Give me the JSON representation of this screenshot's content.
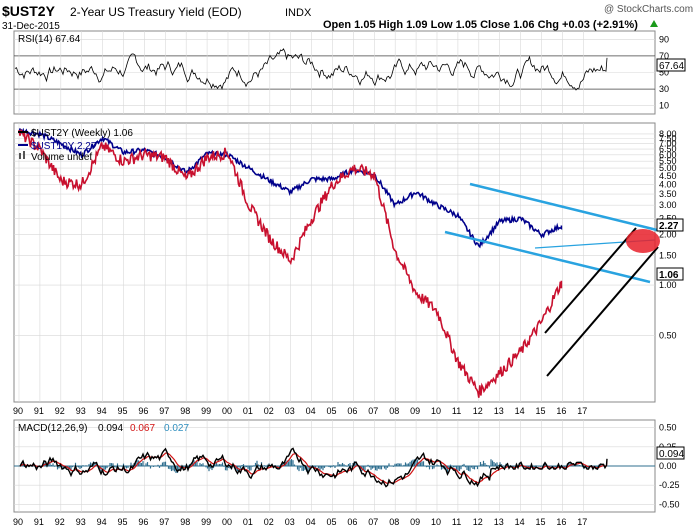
{
  "header": {
    "symbol": "$UST2Y",
    "name": "2-Year US Treasury Yield (EOD)",
    "exchange": "INDX",
    "date": "31-Dec-2015",
    "copyright": "@ StockCharts.com",
    "quote": "Open 1.05  High 1.09  Low 1.05  Close 1.06  Chg +0.03 (+2.91%)",
    "chg_arrow": "up-triangle-icon"
  },
  "colors": {
    "ust2y_black": "#000000",
    "ust2y_red": "#c8102e",
    "ust10y": "#00008b",
    "channel": "#29a3e0",
    "highlight": "#e8202a",
    "macd_hist": "#2f6f8f",
    "signal": "#d21414",
    "grid": "#d8d8d8"
  },
  "chart_data": [
    {
      "type": "line",
      "panel": "RSI",
      "title": "RSI(14) 67.64",
      "series": [
        {
          "name": "RSI(14)",
          "last": 67.64
        }
      ],
      "y_ticks": [
        90,
        70,
        50,
        30,
        10
      ],
      "reference_lines": [
        70,
        30
      ],
      "last_label": "67.64"
    },
    {
      "type": "line",
      "panel": "Price",
      "scale": "log",
      "x_ticks": [
        "90",
        "91",
        "92",
        "93",
        "94",
        "95",
        "96",
        "97",
        "98",
        "99",
        "00",
        "01",
        "02",
        "03",
        "04",
        "05",
        "06",
        "07",
        "08",
        "09",
        "10",
        "11",
        "12",
        "13",
        "14",
        "15",
        "16",
        "17"
      ],
      "y_ticks": [
        "8.00",
        "7.50",
        "7.00",
        "6.50",
        "6.00",
        "5.50",
        "5.00",
        "4.50",
        "4.00",
        "3.50",
        "3.00",
        "2.50",
        "2.00",
        "1.50",
        "1.00",
        "0.50"
      ],
      "legend": [
        "$UST2Y (Weekly) 1.06",
        "$UST10Y 2.27",
        "Volume undef"
      ],
      "series": [
        {
          "name": "$UST10Y",
          "x": [
            1990,
            1991,
            1992,
            1993,
            1994,
            1995,
            1996,
            1997,
            1998,
            1999,
            2000,
            2001,
            2002,
            2003,
            2004,
            2005,
            2006,
            2007,
            2008,
            2009,
            2010,
            2011,
            2012,
            2013,
            2014,
            2015,
            2016
          ],
          "values": [
            8.4,
            8.0,
            7.0,
            6.0,
            7.6,
            6.2,
            6.4,
            5.8,
            4.7,
            6.1,
            6.0,
            5.0,
            4.2,
            3.6,
            4.3,
            4.3,
            4.9,
            4.6,
            3.0,
            3.6,
            3.0,
            2.6,
            1.7,
            2.4,
            2.5,
            2.0,
            2.27
          ]
        },
        {
          "name": "$UST2Y",
          "x": [
            1990,
            1991,
            1992,
            1993,
            1994,
            1995,
            1996,
            1997,
            1998,
            1999,
            2000,
            2001,
            2002,
            2003,
            2004,
            2005,
            2006,
            2007,
            2008,
            2009,
            2010,
            2011,
            2012,
            2013,
            2014,
            2015,
            2016
          ],
          "values": [
            8.2,
            6.5,
            4.2,
            4.0,
            6.8,
            5.5,
            6.0,
            5.8,
            4.3,
            5.8,
            6.2,
            3.0,
            1.9,
            1.4,
            2.5,
            4.0,
            5.0,
            4.6,
            1.6,
            0.9,
            0.7,
            0.35,
            0.23,
            0.3,
            0.4,
            0.6,
            1.06
          ]
        }
      ],
      "last_labels": [
        "2.27",
        "1.06"
      ]
    },
    {
      "type": "line",
      "panel": "MACD",
      "title": "MACD(12,26,9) 0.094, 0.067, 0.027",
      "values": {
        "macd": "0.094",
        "signal": "0.067",
        "histogram": "0.027"
      },
      "y_ticks": [
        "0.50",
        "0.25",
        "0.00",
        "-0.25",
        "-0.50"
      ],
      "x_ticks": [
        "90",
        "91",
        "92",
        "93",
        "94",
        "95",
        "96",
        "97",
        "98",
        "99",
        "00",
        "01",
        "02",
        "03",
        "04",
        "05",
        "06",
        "07",
        "08",
        "09",
        "10",
        "11",
        "12",
        "13",
        "14",
        "15",
        "16",
        "17"
      ],
      "last_label": "0.094"
    }
  ]
}
